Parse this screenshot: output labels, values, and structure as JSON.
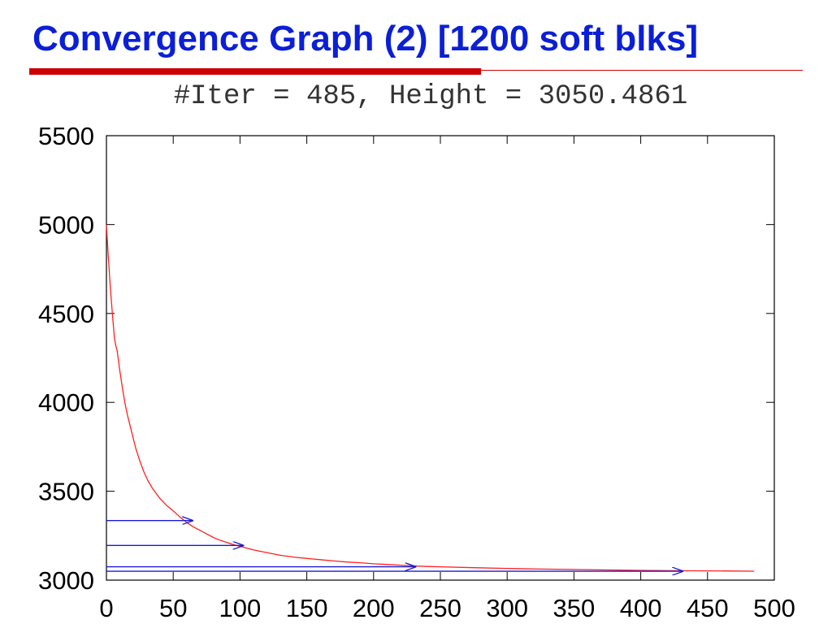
{
  "slide": {
    "title": "Convergence Graph (2) [1200 soft blks]",
    "title_color": "#0b1fd6",
    "rule_color": "#cc0000"
  },
  "chart_data": {
    "type": "line",
    "title": "#Iter = 485, Height = 3050.4861",
    "xlabel": "",
    "ylabel": "",
    "xlim": [
      0,
      500
    ],
    "ylim": [
      3000,
      5500
    ],
    "x_ticks": [
      0,
      50,
      100,
      150,
      200,
      250,
      300,
      350,
      400,
      450,
      500
    ],
    "y_ticks": [
      3000,
      3500,
      4000,
      4500,
      5000,
      5500
    ],
    "grid": false,
    "series": [
      {
        "color": "#ff2020",
        "x": [
          0,
          1,
          2,
          3,
          4,
          5,
          6,
          7,
          8,
          10,
          12,
          14,
          16,
          18,
          20,
          22,
          25,
          28,
          31,
          35,
          40,
          45,
          50,
          55,
          60,
          65,
          70,
          75,
          80,
          85,
          90,
          95,
          100,
          110,
          120,
          130,
          140,
          150,
          160,
          170,
          180,
          190,
          200,
          210,
          220,
          230,
          240,
          250,
          275,
          300,
          325,
          350,
          375,
          400,
          425,
          450,
          470,
          485
        ],
        "y": [
          5000,
          4870,
          4750,
          4640,
          4540,
          4450,
          4360,
          4320,
          4290,
          4180,
          4080,
          3990,
          3920,
          3860,
          3800,
          3740,
          3670,
          3610,
          3560,
          3510,
          3460,
          3420,
          3390,
          3355,
          3325,
          3300,
          3280,
          3260,
          3240,
          3225,
          3212,
          3200,
          3190,
          3170,
          3155,
          3140,
          3130,
          3122,
          3115,
          3108,
          3102,
          3098,
          3092,
          3088,
          3084,
          3080,
          3077,
          3075,
          3070,
          3066,
          3062,
          3060,
          3057,
          3055,
          3053,
          3052,
          3051,
          3050.4861
        ]
      }
    ],
    "annotations": [
      {
        "type": "arrow",
        "y": 3335,
        "x_from": 0,
        "x_to": 65,
        "color": "#1a1ad0"
      },
      {
        "type": "arrow",
        "y": 3195,
        "x_from": 0,
        "x_to": 103,
        "color": "#1a1ad0"
      },
      {
        "type": "arrow",
        "y": 3075,
        "x_from": 0,
        "x_to": 232,
        "color": "#1a1ad0"
      },
      {
        "type": "arrow",
        "y": 3050,
        "x_from": 0,
        "x_to": 432,
        "color": "#1a1ad0"
      }
    ]
  }
}
